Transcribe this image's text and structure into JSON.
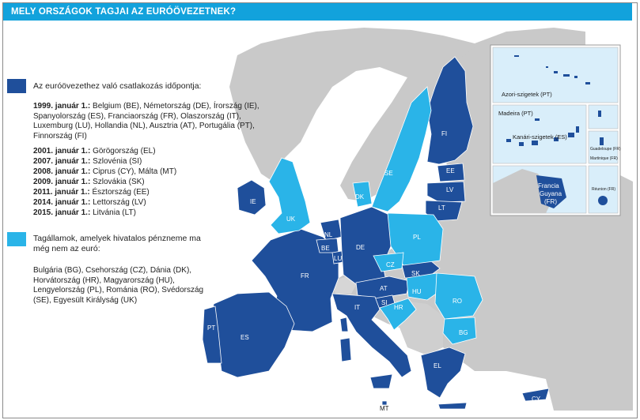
{
  "title": "MELY ORSZÁGOK TAGJAI AZ EURÓÖVEZETNEK?",
  "colors": {
    "member": "#1f4f9b",
    "non_member": "#2ab4e8",
    "other": "#c8c8c8",
    "sea": "#ffffff",
    "title_bg": "#12a2dc"
  },
  "legend": {
    "member_heading": "Az euróövezethez való csatlakozás időpontja:",
    "entries": [
      {
        "date": "1999. január 1.:",
        "text": "Belgium (BE), Németország (DE), Írország (IE), Spanyolország (ES), Franciaország (FR), Olaszország (IT), Luxemburg (LU), Hollandia (NL), Ausztria (AT), Portugália (PT), Finnország (FI)"
      },
      {
        "date": "2001.",
        "month": "január 1.:",
        "text": "Görögország (EL)"
      },
      {
        "date": "2007.",
        "month": "január 1.:",
        "text": "Szlovénia (SI)"
      },
      {
        "date": "2008.",
        "month": "január 1.:",
        "text": "Ciprus (CY), Málta (MT)"
      },
      {
        "date": "2009.",
        "month": "január 1.:",
        "text": "Szlovákia (SK)"
      },
      {
        "date": "2011.",
        "month": "január 1.:",
        "text": "Észtország (EE)"
      },
      {
        "date": "2014.",
        "month": "január 1.:",
        "text": "Lettország (LV)"
      },
      {
        "date": "2015.",
        "month": "január 1.:",
        "text": "Litvánia (LT)"
      }
    ],
    "non_member_heading": "Tagállamok, amelyek hivatalos pénzneme ma még nem az euró:",
    "non_member_text": "Bulgária (BG), Csehország (CZ), Dánia (DK), Horvátország (HR), Magyarország (HU), Lengyelország (PL), Románia (RO), Svédország (SE), Egyesült Királyság (UK)"
  },
  "map_labels": {
    "FI": "FI",
    "SE": "SE",
    "EE": "EE",
    "LV": "LV",
    "LT": "LT",
    "DK": "DK",
    "IE": "IE",
    "UK": "UK",
    "NL": "NL",
    "BE": "BE",
    "LU": "LU",
    "DE": "DE",
    "PL": "PL",
    "CZ": "CZ",
    "SK": "SK",
    "AT": "AT",
    "HU": "HU",
    "RO": "RO",
    "SI": "SI",
    "HR": "HR",
    "BG": "BG",
    "FR": "FR",
    "IT": "IT",
    "PT": "PT",
    "ES": "ES",
    "EL": "EL",
    "MT": "MT",
    "CY": "CY"
  },
  "insets": {
    "azores": "Azori-szigetek (PT)",
    "madeira": "Madeira (PT)",
    "canary": "Kanári-szigetek (ES)",
    "guadeloupe": "Guadeloupe (FR)",
    "martinique": "Martinique (FR)",
    "reunion": "Réunion (FR)",
    "guyana_line1": "Francia",
    "guyana_line2": "Guyana",
    "guyana_line3": "(FR)"
  }
}
